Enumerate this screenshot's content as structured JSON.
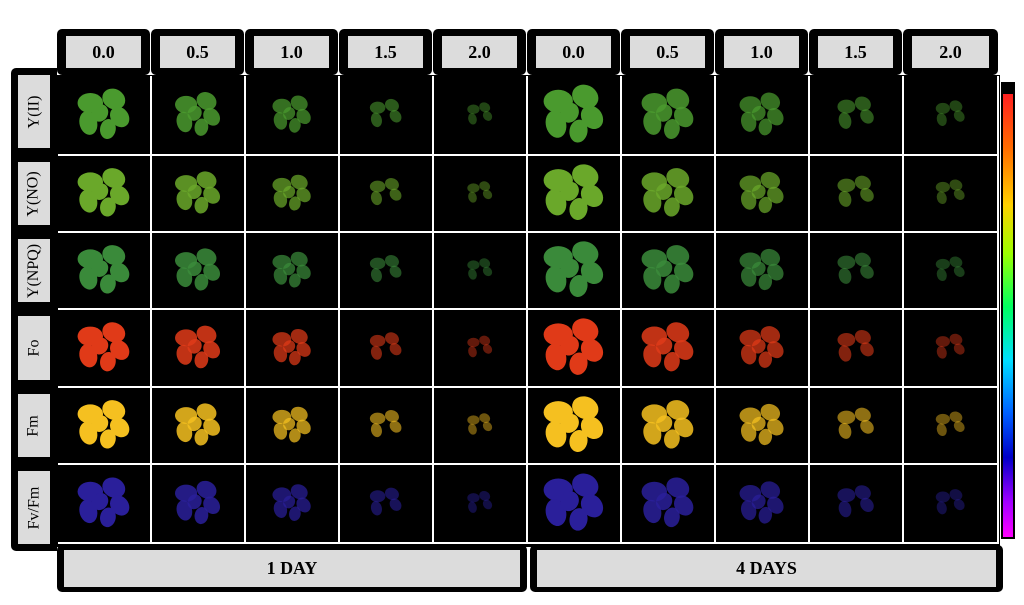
{
  "column_headers": [
    "0.0",
    "0.5",
    "1.0",
    "1.5",
    "2.0",
    "0.0",
    "0.5",
    "1.0",
    "1.5",
    "2.0"
  ],
  "row_labels": [
    "Y(II)",
    "Y(NO)",
    "Y(NPQ)",
    "Fo",
    "Fm",
    "Fv/Fm"
  ],
  "group_labels": [
    "1 DAY",
    "4 DAYS"
  ],
  "colorbar_colors": [
    "#ff2020",
    "#ff6a00",
    "#ffd000",
    "#9cff00",
    "#00ff60",
    "#00e0ff",
    "#0060ff",
    "#0000c8",
    "#a000ff",
    "#ff00ff"
  ],
  "row_colors": {
    "Y(II)": "#4a9a2e",
    "Y(NO)": "#6aa82a",
    "Y(NPQ)": "#3a8a3a",
    "Fo": "#e03a18",
    "Fm": "#f5c020",
    "Fv/Fm": "#2a1f9a"
  }
}
